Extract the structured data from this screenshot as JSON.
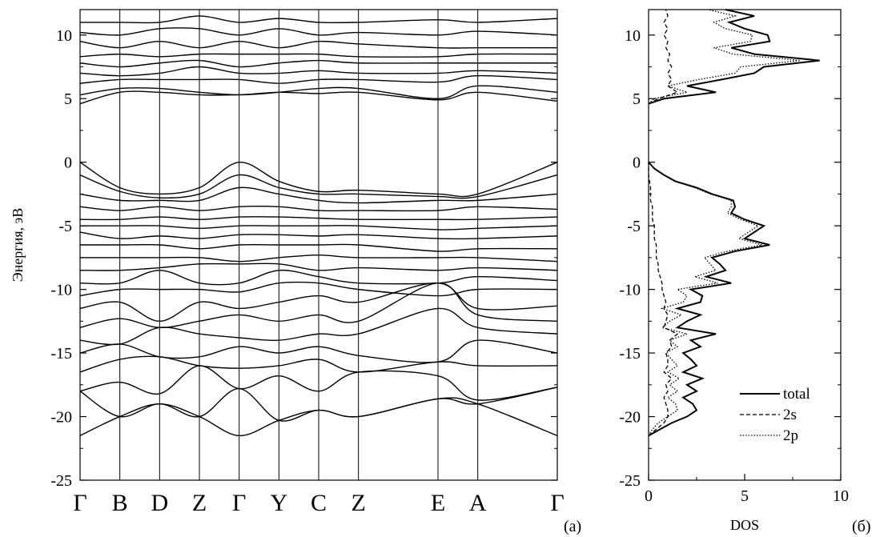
{
  "chart_data": [
    {
      "type": "line",
      "panel_label": "(a)",
      "ylabel": "Энергия, эВ",
      "ylim": [
        -25,
        12
      ],
      "y_ticks": [
        "10",
        "5",
        "0",
        "-5",
        "-10",
        "-15",
        "-20",
        "-25"
      ],
      "k_points": [
        "Γ",
        "B",
        "D",
        "Z",
        "Γ",
        "Y",
        "C",
        "Z",
        "E",
        "A",
        "Γ"
      ],
      "k_positions": [
        0,
        1,
        2,
        3,
        4,
        5,
        6,
        7,
        9,
        10,
        12
      ],
      "grid": "vertical lines at k-points",
      "series": [
        {
          "values": [
            -21.5,
            -20.0,
            -19.0,
            -20.0,
            -21.5,
            -20.3,
            -19.5,
            -20.0,
            -18.6,
            -19.0,
            -21.5
          ]
        },
        {
          "values": [
            -18.0,
            -20.0,
            -19.0,
            -20.0,
            -17.8,
            -20.3,
            -19.5,
            -20.0,
            -18.6,
            -19.0,
            -17.7
          ]
        },
        {
          "values": [
            -18.0,
            -17.3,
            -18.2,
            -16.0,
            -17.8,
            -16.8,
            -18.0,
            -16.5,
            -16.8,
            -18.7,
            -17.7
          ]
        },
        {
          "values": [
            -16.5,
            -15.5,
            -15.3,
            -16.0,
            -16.2,
            -16.0,
            -15.5,
            -16.5,
            -15.7,
            -16.0,
            -16.0
          ]
        },
        {
          "values": [
            -15.0,
            -14.3,
            -15.3,
            -15.3,
            -14.5,
            -15.0,
            -14.5,
            -15.2,
            -15.7,
            -14.0,
            -15.0
          ]
        },
        {
          "values": [
            -14.0,
            -14.3,
            -13.0,
            -13.5,
            -13.8,
            -14.0,
            -13.5,
            -13.5,
            -11.5,
            -13.0,
            -13.5
          ]
        },
        {
          "values": [
            -13.0,
            -12.3,
            -13.0,
            -12.5,
            -12.0,
            -12.5,
            -12.0,
            -12.5,
            -9.5,
            -12.0,
            -12.5
          ]
        },
        {
          "values": [
            -11.5,
            -11.0,
            -12.5,
            -11.0,
            -11.5,
            -11.0,
            -10.5,
            -11.0,
            -9.5,
            -11.5,
            -11.3
          ]
        },
        {
          "values": [
            -10.5,
            -10.0,
            -10.0,
            -10.0,
            -10.2,
            -9.5,
            -9.5,
            -10.0,
            -10.5,
            -10.0,
            -10.0
          ]
        },
        {
          "values": [
            -9.5,
            -9.5,
            -8.5,
            -9.5,
            -9.5,
            -8.5,
            -9.0,
            -9.5,
            -9.5,
            -9.0,
            -9.3
          ]
        },
        {
          "values": [
            -8.5,
            -8.5,
            -8.3,
            -8.0,
            -8.0,
            -8.0,
            -8.5,
            -8.3,
            -8.5,
            -8.3,
            -8.5
          ]
        },
        {
          "values": [
            -7.5,
            -7.5,
            -7.5,
            -7.5,
            -7.8,
            -7.5,
            -7.3,
            -7.5,
            -7.5,
            -7.5,
            -7.8
          ]
        },
        {
          "values": [
            -6.5,
            -6.5,
            -6.5,
            -6.8,
            -6.5,
            -6.5,
            -6.5,
            -6.5,
            -7.0,
            -6.8,
            -6.8
          ]
        },
        {
          "values": [
            -5.5,
            -6.0,
            -5.8,
            -6.0,
            -5.7,
            -5.7,
            -5.8,
            -5.7,
            -6.0,
            -6.0,
            -5.8
          ]
        },
        {
          "values": [
            -5.0,
            -5.0,
            -5.0,
            -5.2,
            -5.0,
            -5.0,
            -5.0,
            -5.0,
            -5.3,
            -5.2,
            -5.0
          ]
        },
        {
          "values": [
            -4.5,
            -4.5,
            -4.3,
            -4.5,
            -4.3,
            -4.3,
            -4.4,
            -4.5,
            -4.5,
            -4.5,
            -4.3
          ]
        },
        {
          "values": [
            -3.5,
            -3.8,
            -3.5,
            -3.8,
            -3.5,
            -3.5,
            -3.8,
            -3.8,
            -3.8,
            -3.5,
            -3.7
          ]
        },
        {
          "values": [
            -2.5,
            -3.0,
            -3.0,
            -3.0,
            -2.0,
            -2.5,
            -3.0,
            -3.2,
            -3.0,
            -3.0,
            -2.5
          ]
        },
        {
          "values": [
            -1.0,
            -2.3,
            -2.8,
            -2.5,
            -1.0,
            -2.0,
            -2.5,
            -2.5,
            -2.7,
            -2.7,
            -1.0
          ]
        },
        {
          "values": [
            0.0,
            -2.0,
            -2.5,
            -2.0,
            0.0,
            -1.5,
            -2.3,
            -2.2,
            -2.5,
            -2.5,
            0.0
          ]
        },
        {
          "values": [
            4.6,
            5.5,
            5.5,
            5.3,
            5.3,
            5.5,
            5.4,
            5.5,
            4.9,
            5.5,
            4.8
          ]
        },
        {
          "values": [
            5.3,
            5.8,
            5.8,
            5.5,
            5.3,
            5.5,
            5.8,
            5.8,
            5.0,
            6.0,
            5.5
          ]
        },
        {
          "values": [
            6.2,
            6.5,
            6.5,
            6.5,
            6.5,
            6.2,
            6.5,
            6.5,
            6.3,
            6.8,
            6.5
          ]
        },
        {
          "values": [
            7.0,
            6.8,
            7.0,
            7.5,
            7.0,
            7.0,
            7.2,
            7.0,
            7.0,
            7.2,
            7.0
          ]
        },
        {
          "values": [
            7.8,
            7.5,
            7.8,
            8.0,
            7.5,
            7.8,
            8.0,
            7.8,
            7.8,
            7.8,
            7.8
          ]
        },
        {
          "values": [
            8.3,
            8.5,
            8.3,
            8.5,
            8.5,
            8.5,
            8.5,
            8.3,
            8.3,
            8.5,
            8.5
          ]
        },
        {
          "values": [
            9.5,
            9.0,
            9.5,
            9.0,
            9.5,
            9.0,
            9.5,
            9.3,
            9.0,
            9.0,
            9.0
          ]
        },
        {
          "values": [
            10.2,
            10.0,
            10.5,
            10.5,
            10.0,
            10.5,
            10.0,
            10.2,
            10.0,
            10.3,
            10.0
          ]
        },
        {
          "values": [
            11.0,
            11.0,
            11.0,
            11.5,
            11.0,
            11.3,
            11.0,
            11.0,
            11.2,
            11.0,
            11.3
          ]
        }
      ]
    },
    {
      "type": "line",
      "panel_label": "(б)",
      "xlabel": "DOS",
      "xlim": [
        0,
        10
      ],
      "ylim": [
        -25,
        12
      ],
      "x_ticks": [
        "0",
        "5",
        "10"
      ],
      "y_ticks": [
        "10",
        "5",
        "0",
        "-5",
        "-10",
        "-15",
        "-20",
        "-25"
      ],
      "legend": "bottom-right",
      "energy": [
        -21.5,
        -21,
        -20.5,
        -20,
        -19.5,
        -19,
        -18.5,
        -18,
        -17.5,
        -17,
        -16.5,
        -16,
        -15.5,
        -15,
        -14.5,
        -14,
        -13.5,
        -13,
        -12.5,
        -12,
        -11.5,
        -11,
        -10.5,
        -10,
        -9.5,
        -9,
        -8.5,
        -8,
        -7.5,
        -7,
        -6.5,
        -6,
        -5.5,
        -5,
        -4.5,
        -4,
        -3.5,
        -3,
        -2.5,
        -2,
        -1.5,
        -1,
        -0.5,
        0,
        4.6,
        5,
        5.5,
        6,
        6.5,
        7,
        7.5,
        8,
        8.5,
        9,
        9.5,
        10,
        10.5,
        11,
        11.5,
        12
      ],
      "series": [
        {
          "name": "total",
          "values": [
            0.0,
            0.6,
            1.2,
            2.0,
            2.5,
            2.3,
            1.8,
            2.5,
            2.0,
            2.8,
            1.8,
            2.5,
            2.2,
            1.8,
            2.7,
            2.2,
            3.5,
            1.5,
            2.0,
            2.7,
            1.5,
            2.7,
            2.8,
            2.2,
            4.3,
            3.0,
            4.0,
            3.7,
            3.3,
            4.5,
            6.3,
            5.0,
            5.5,
            6.0,
            5.0,
            4.3,
            4.5,
            4.4,
            3.3,
            2.5,
            1.4,
            0.8,
            0.3,
            0.0,
            0.0,
            0.8,
            3.5,
            2.0,
            3.8,
            5.5,
            6.0,
            8.9,
            5.5,
            4.3,
            6.3,
            6.2,
            5.0,
            4.2,
            5.5,
            4.0
          ]
        },
        {
          "name": "2s",
          "values": [
            0.0,
            0.4,
            0.8,
            1.0,
            1.0,
            0.9,
            0.8,
            1.0,
            0.9,
            1.2,
            0.8,
            1.0,
            1.0,
            0.9,
            1.2,
            1.1,
            1.5,
            0.8,
            0.9,
            1.0,
            0.8,
            0.9,
            0.8,
            0.7,
            0.7,
            0.6,
            0.5,
            0.5,
            0.4,
            0.4,
            0.4,
            0.3,
            0.3,
            0.3,
            0.2,
            0.2,
            0.2,
            0.1,
            0.1,
            0.1,
            0.05,
            0.0,
            0.0,
            0.0,
            0.0,
            0.5,
            1.5,
            1.0,
            1.2,
            1.0,
            1.2,
            1.0,
            1.1,
            0.9,
            1.0,
            0.8,
            1.0,
            0.8,
            1.0,
            0.9
          ]
        },
        {
          "name": "2p",
          "values": [
            0.0,
            0.2,
            0.5,
            1.0,
            1.5,
            1.4,
            1.0,
            1.5,
            1.1,
            1.6,
            1.0,
            1.5,
            1.2,
            0.9,
            1.5,
            1.1,
            2.0,
            0.7,
            1.1,
            1.7,
            0.7,
            1.8,
            2.0,
            1.5,
            3.6,
            2.4,
            3.5,
            3.2,
            2.9,
            4.1,
            5.9,
            4.7,
            5.2,
            5.7,
            4.8,
            4.1,
            4.3,
            4.3,
            3.2,
            2.4,
            1.35,
            0.8,
            0.3,
            0.0,
            0.0,
            0.3,
            2.0,
            1.0,
            2.6,
            4.5,
            4.8,
            7.9,
            4.4,
            3.4,
            5.3,
            5.4,
            4.0,
            3.4,
            4.5,
            3.1
          ]
        }
      ]
    }
  ]
}
